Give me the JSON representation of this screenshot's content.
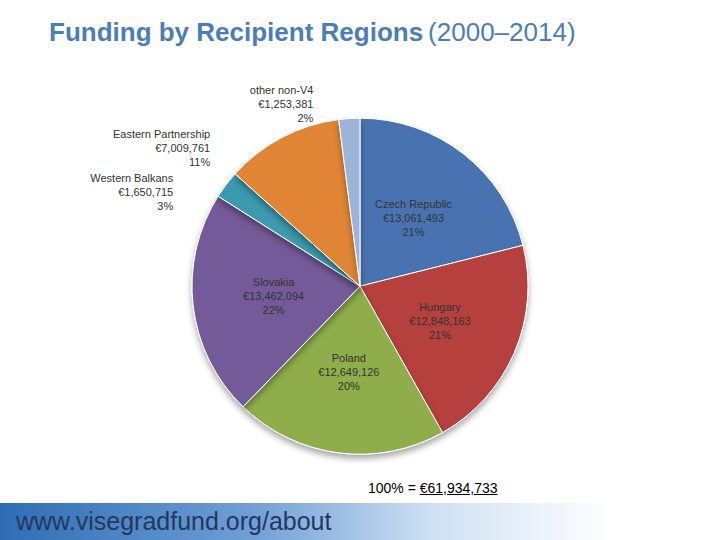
{
  "chart_data": {
    "type": "pie",
    "title": "Funding by Recipient Regions",
    "title_period": "(2000–2014)",
    "categories": [
      "Czech Republic",
      "Hungary",
      "Poland",
      "Slovakia",
      "Western Balkans",
      "Eastern Partnership",
      "other non-V4"
    ],
    "values": [
      13061493,
      12848163,
      12649126,
      13462094,
      1650715,
      7009761,
      1253381
    ],
    "value_labels": [
      "€13,061,493",
      "€12,848,163",
      "€12,649,126",
      "€13,462,094",
      "€1,650,715",
      "€7,009,761",
      "€1,253,381"
    ],
    "percents": [
      21,
      21,
      20,
      22,
      3,
      11,
      2
    ],
    "percent_labels": [
      "21%",
      "21%",
      "20%",
      "22%",
      "3%",
      "11%",
      "2%"
    ],
    "colors": [
      "#4a73b0",
      "#b5413e",
      "#8fae4c",
      "#755a99",
      "#3a9ab0",
      "#e08535",
      "#9db3d8"
    ],
    "data_labels": true,
    "annotation": "100% = €61,934,733",
    "footer": "www.visegradfund.org/about"
  }
}
